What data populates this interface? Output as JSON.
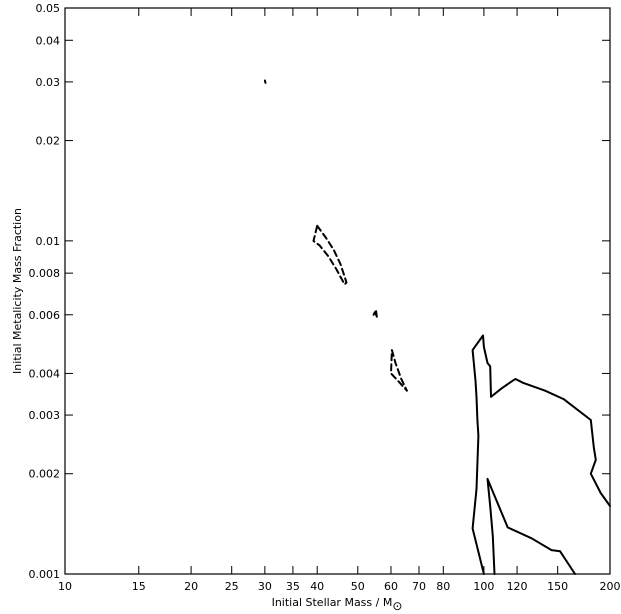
{
  "chart_data": {
    "type": "contour",
    "xlabel": "Initial Stellar Mass / M",
    "xlabel_subscript": "⊙",
    "ylabel": "Initial Metalicity Mass Fraction",
    "xscale": "log",
    "yscale": "log",
    "xlim": [
      10,
      200
    ],
    "ylim": [
      0.001,
      0.05
    ],
    "x_ticks": [
      10,
      15,
      20,
      25,
      30,
      35,
      40,
      50,
      60,
      70,
      80,
      100,
      120,
      150,
      200
    ],
    "x_tick_labels": [
      "10",
      "15",
      "20",
      "25",
      "30",
      "35",
      "40",
      "50",
      "60",
      "70",
      "80",
      "100",
      "120",
      "150",
      "200"
    ],
    "y_ticks": [
      0.001,
      0.002,
      0.003,
      0.004,
      0.006,
      0.008,
      0.01,
      0.02,
      0.03,
      0.04,
      0.05
    ],
    "y_tick_labels": [
      "0.001",
      "0.002",
      "0.003",
      "0.004",
      "0.006",
      "0.008",
      "0.01",
      "0.02",
      "0.03",
      "0.04",
      "0.05"
    ],
    "contours": [
      {
        "style": "solid",
        "closed": true,
        "points": [
          [
            30.0,
            0.0303
          ],
          [
            30.1,
            0.0298
          ],
          [
            30.05,
            0.03
          ],
          [
            30.0,
            0.0303
          ]
        ]
      },
      {
        "style": "dashed",
        "closed": true,
        "points": [
          [
            40.0,
            0.0111
          ],
          [
            42.0,
            0.0102
          ],
          [
            43.8,
            0.0094
          ],
          [
            45.5,
            0.0085
          ],
          [
            47.0,
            0.0075
          ],
          [
            46.5,
            0.0074
          ],
          [
            44.5,
            0.0082
          ],
          [
            42.5,
            0.009
          ],
          [
            40.5,
            0.0097
          ],
          [
            39.2,
            0.01
          ],
          [
            40.0,
            0.0111
          ]
        ]
      },
      {
        "style": "solid",
        "closed": true,
        "points": [
          [
            54.5,
            0.006
          ],
          [
            55.3,
            0.00615
          ],
          [
            55.5,
            0.00592
          ],
          [
            55.0,
            0.00612
          ],
          [
            54.5,
            0.006
          ]
        ]
      },
      {
        "style": "dashed",
        "closed": true,
        "points": [
          [
            60.3,
            0.0047
          ],
          [
            61.5,
            0.0043
          ],
          [
            63.5,
            0.00385
          ],
          [
            65.5,
            0.00355
          ],
          [
            63.0,
            0.00375
          ],
          [
            60.0,
            0.004
          ],
          [
            60.3,
            0.0047
          ]
        ]
      },
      {
        "style": "solid",
        "closed": false,
        "points": [
          [
            106.0,
            0.001
          ],
          [
            105.0,
            0.0013
          ],
          [
            103.5,
            0.0016
          ],
          [
            102.0,
            0.00193
          ],
          [
            114.0,
            0.00138
          ],
          [
            130.0,
            0.00128
          ],
          [
            145.0,
            0.00118
          ],
          [
            152.0,
            0.00117
          ],
          [
            165.0,
            0.001
          ]
        ]
      },
      {
        "style": "solid",
        "closed": false,
        "points": [
          [
            100.0,
            0.001
          ],
          [
            94.0,
            0.00137
          ],
          [
            96.0,
            0.0018
          ],
          [
            97.0,
            0.0026
          ],
          [
            96.5,
            0.0029
          ],
          [
            96.0,
            0.0034
          ],
          [
            95.5,
            0.0038
          ],
          [
            94.0,
            0.0047
          ],
          [
            99.5,
            0.0052
          ],
          [
            100.0,
            0.0048
          ],
          [
            102.0,
            0.0043
          ],
          [
            103.5,
            0.0042
          ],
          [
            104.0,
            0.0034
          ],
          [
            110.0,
            0.0036
          ],
          [
            117.0,
            0.0038
          ],
          [
            119.0,
            0.00385
          ],
          [
            124.0,
            0.00375
          ],
          [
            140.0,
            0.00355
          ],
          [
            155.0,
            0.00335
          ],
          [
            180.0,
            0.0029
          ],
          [
            183.0,
            0.0024
          ],
          [
            185.0,
            0.0022
          ],
          [
            180.0,
            0.002
          ],
          [
            190.0,
            0.00175
          ],
          [
            200.0,
            0.0016
          ]
        ]
      }
    ]
  }
}
